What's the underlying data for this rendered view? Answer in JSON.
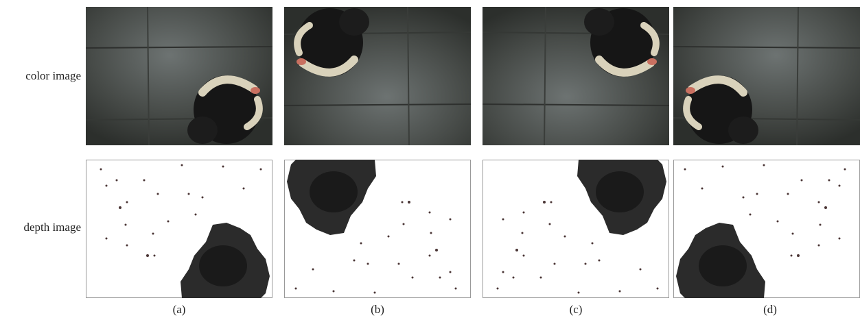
{
  "row_labels": [
    "color image",
    "depth image"
  ],
  "column_labels": [
    "(a)",
    "(b)",
    "(c)",
    "(d)"
  ]
}
